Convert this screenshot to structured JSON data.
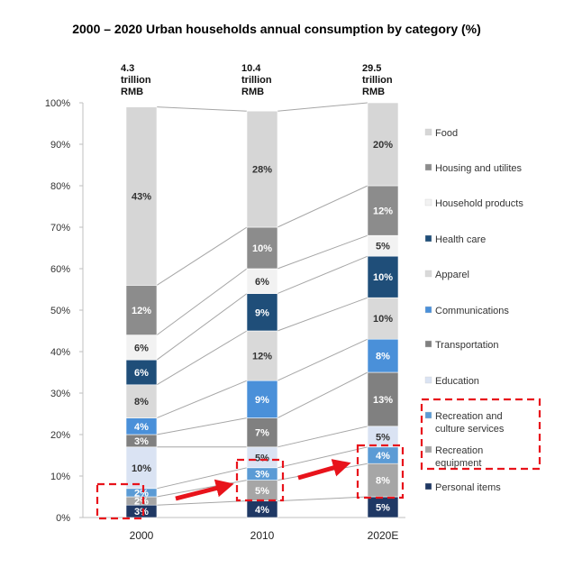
{
  "chart_data": {
    "type": "bar",
    "subtype": "100% stacked",
    "title": "2000 – 2020 Urban households annual consumption by category (%)",
    "categories": [
      "2000",
      "2010",
      "2020E"
    ],
    "totals": [
      [
        "4.3",
        "trillion",
        "RMB"
      ],
      [
        "10.4",
        "trillion",
        "RMB"
      ],
      [
        "29.5",
        "trillion",
        "RMB"
      ]
    ],
    "yticks": [
      "0%",
      "10%",
      "20%",
      "30%",
      "40%",
      "50%",
      "60%",
      "70%",
      "80%",
      "90%",
      "100%"
    ],
    "ylim": [
      0,
      100
    ],
    "series": [
      {
        "name": "Personal items",
        "color": "#1f3864",
        "text": "#ffffff",
        "values": [
          3,
          4,
          5
        ],
        "labels": [
          "3%",
          "4%",
          "5%"
        ]
      },
      {
        "name": "Recreation equipment",
        "color": "#a6a6a6",
        "text": "#ffffff",
        "values": [
          2,
          5,
          8
        ],
        "labels": [
          "2%",
          "5%",
          "8%"
        ]
      },
      {
        "name": "Recreation and culture services",
        "color": "#5b9bd5",
        "text": "#ffffff",
        "values": [
          2,
          3,
          4
        ],
        "labels": [
          "2%",
          "3%",
          "4%"
        ]
      },
      {
        "name": "Education",
        "color": "#dae3f3",
        "text": "#333333",
        "values": [
          10,
          5,
          5
        ],
        "labels": [
          "10%",
          "5%",
          "5%"
        ]
      },
      {
        "name": "Transportation",
        "color": "#808080",
        "text": "#ffffff",
        "values": [
          3,
          7,
          13
        ],
        "labels": [
          "3%",
          "7%",
          "13%"
        ]
      },
      {
        "name": "Communications",
        "color": "#4a90d9",
        "text": "#ffffff",
        "values": [
          4,
          9,
          8
        ],
        "labels": [
          "4%",
          "9%",
          "8%"
        ]
      },
      {
        "name": "Apparel",
        "color": "#d9d9d9",
        "text": "#333333",
        "values": [
          8,
          12,
          10
        ],
        "labels": [
          "8%",
          "12%",
          "10%"
        ]
      },
      {
        "name": "Health care",
        "color": "#1f4e79",
        "text": "#ffffff",
        "values": [
          6,
          9,
          10
        ],
        "labels": [
          "6%",
          "9%",
          "10%"
        ]
      },
      {
        "name": "Household products",
        "color": "#f2f2f2",
        "text": "#333333",
        "values": [
          6,
          6,
          5
        ],
        "labels": [
          "6%",
          "6%",
          "5%"
        ]
      },
      {
        "name": "Housing and utilites",
        "color": "#8c8c8c",
        "text": "#ffffff",
        "values": [
          12,
          10,
          12
        ],
        "labels": [
          "12%",
          "10%",
          "12%"
        ]
      },
      {
        "name": "Food",
        "color": "#d6d6d6",
        "text": "#333333",
        "values": [
          43,
          28,
          20
        ],
        "labels": [
          "43%",
          "28%",
          "20%"
        ]
      }
    ],
    "legend": [
      "Food",
      "Housing and utilites",
      "Household products",
      "Health care",
      "Apparel",
      "Communications",
      "Transportation",
      "Education",
      "Recreation and culture services",
      "Recreation equipment",
      "Personal items"
    ],
    "legend_position": "right",
    "highlight_color": "#e8131b"
  }
}
